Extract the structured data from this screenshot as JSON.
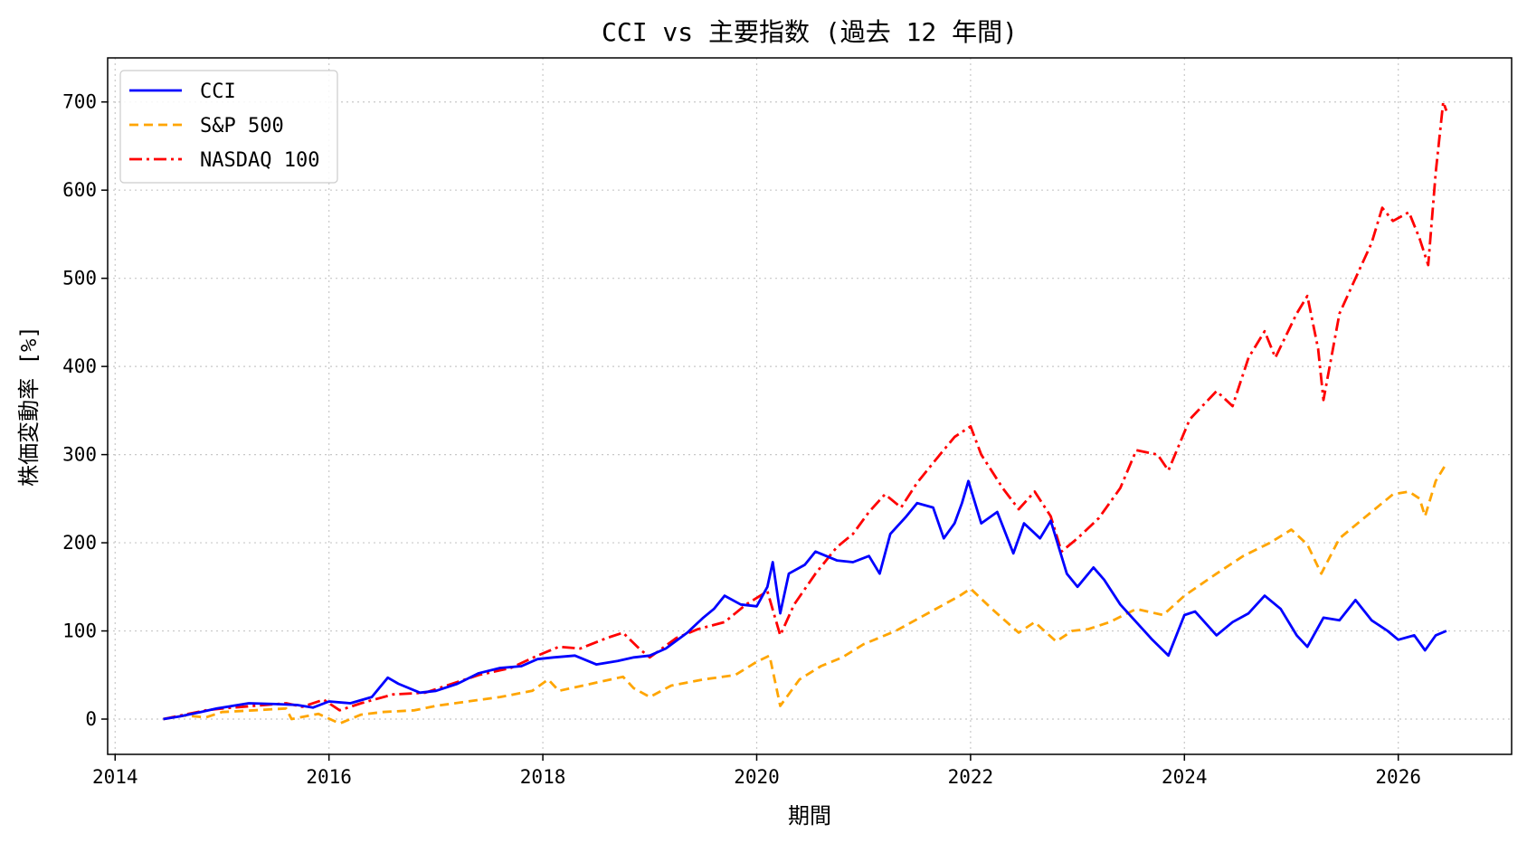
{
  "chart_data": {
    "type": "line",
    "title": "CCI vs 主要指数 (過去 12 年間)",
    "xlabel": "期間",
    "ylabel": "株価変動率 [%]",
    "xlim": [
      2013.93,
      2027.06
    ],
    "ylim": [
      -40,
      750
    ],
    "xticks": [
      2014,
      2016,
      2018,
      2020,
      2022,
      2024,
      2026
    ],
    "yticks": [
      0,
      100,
      200,
      300,
      400,
      500,
      600,
      700
    ],
    "grid": true,
    "legend_position": "top-left",
    "series": [
      {
        "name": "CCI",
        "color": "#0000ff",
        "style": "solid",
        "points": [
          [
            2014.45,
            0
          ],
          [
            2014.6,
            3
          ],
          [
            2014.8,
            8
          ],
          [
            2014.95,
            12
          ],
          [
            2015.1,
            15
          ],
          [
            2015.25,
            18
          ],
          [
            2015.5,
            17
          ],
          [
            2015.7,
            16
          ],
          [
            2015.85,
            13
          ],
          [
            2016.0,
            20
          ],
          [
            2016.2,
            18
          ],
          [
            2016.4,
            25
          ],
          [
            2016.55,
            47
          ],
          [
            2016.65,
            40
          ],
          [
            2016.85,
            30
          ],
          [
            2017.0,
            32
          ],
          [
            2017.2,
            40
          ],
          [
            2017.4,
            52
          ],
          [
            2017.6,
            58
          ],
          [
            2017.8,
            60
          ],
          [
            2017.95,
            68
          ],
          [
            2018.1,
            70
          ],
          [
            2018.3,
            72
          ],
          [
            2018.5,
            62
          ],
          [
            2018.7,
            66
          ],
          [
            2018.85,
            70
          ],
          [
            2019.0,
            72
          ],
          [
            2019.15,
            80
          ],
          [
            2019.35,
            98
          ],
          [
            2019.5,
            115
          ],
          [
            2019.6,
            125
          ],
          [
            2019.7,
            140
          ],
          [
            2019.85,
            130
          ],
          [
            2020.0,
            128
          ],
          [
            2020.1,
            150
          ],
          [
            2020.15,
            178
          ],
          [
            2020.22,
            120
          ],
          [
            2020.3,
            165
          ],
          [
            2020.45,
            175
          ],
          [
            2020.55,
            190
          ],
          [
            2020.75,
            180
          ],
          [
            2020.9,
            178
          ],
          [
            2021.05,
            185
          ],
          [
            2021.15,
            165
          ],
          [
            2021.25,
            210
          ],
          [
            2021.4,
            230
          ],
          [
            2021.5,
            245
          ],
          [
            2021.65,
            240
          ],
          [
            2021.75,
            205
          ],
          [
            2021.85,
            222
          ],
          [
            2021.92,
            245
          ],
          [
            2021.98,
            270
          ],
          [
            2022.1,
            222
          ],
          [
            2022.25,
            235
          ],
          [
            2022.4,
            188
          ],
          [
            2022.5,
            222
          ],
          [
            2022.65,
            205
          ],
          [
            2022.75,
            225
          ],
          [
            2022.9,
            165
          ],
          [
            2023.0,
            150
          ],
          [
            2023.15,
            172
          ],
          [
            2023.25,
            158
          ],
          [
            2023.4,
            130
          ],
          [
            2023.55,
            110
          ],
          [
            2023.7,
            90
          ],
          [
            2023.85,
            72
          ],
          [
            2024.0,
            118
          ],
          [
            2024.1,
            122
          ],
          [
            2024.3,
            95
          ],
          [
            2024.45,
            110
          ],
          [
            2024.6,
            120
          ],
          [
            2024.75,
            140
          ],
          [
            2024.9,
            125
          ],
          [
            2025.05,
            95
          ],
          [
            2025.15,
            82
          ],
          [
            2025.3,
            115
          ],
          [
            2025.45,
            112
          ],
          [
            2025.6,
            135
          ],
          [
            2025.75,
            112
          ],
          [
            2025.9,
            100
          ],
          [
            2026.0,
            90
          ],
          [
            2026.15,
            95
          ],
          [
            2026.25,
            78
          ],
          [
            2026.35,
            95
          ],
          [
            2026.45,
            100
          ]
        ]
      },
      {
        "name": "S&P 500",
        "color": "#ffa500",
        "style": "dashed",
        "points": [
          [
            2014.45,
            0
          ],
          [
            2014.65,
            4
          ],
          [
            2014.85,
            2
          ],
          [
            2015.0,
            8
          ],
          [
            2015.3,
            10
          ],
          [
            2015.6,
            12
          ],
          [
            2015.65,
            0
          ],
          [
            2015.9,
            6
          ],
          [
            2016.1,
            -5
          ],
          [
            2016.3,
            5
          ],
          [
            2016.5,
            8
          ],
          [
            2016.8,
            10
          ],
          [
            2017.0,
            15
          ],
          [
            2017.3,
            20
          ],
          [
            2017.6,
            25
          ],
          [
            2017.9,
            32
          ],
          [
            2018.05,
            45
          ],
          [
            2018.15,
            32
          ],
          [
            2018.45,
            40
          ],
          [
            2018.75,
            48
          ],
          [
            2018.85,
            35
          ],
          [
            2019.0,
            25
          ],
          [
            2019.2,
            38
          ],
          [
            2019.5,
            45
          ],
          [
            2019.8,
            50
          ],
          [
            2020.0,
            65
          ],
          [
            2020.12,
            72
          ],
          [
            2020.22,
            15
          ],
          [
            2020.4,
            45
          ],
          [
            2020.6,
            60
          ],
          [
            2020.8,
            70
          ],
          [
            2021.0,
            85
          ],
          [
            2021.3,
            100
          ],
          [
            2021.6,
            120
          ],
          [
            2021.9,
            140
          ],
          [
            2022.0,
            148
          ],
          [
            2022.2,
            125
          ],
          [
            2022.45,
            98
          ],
          [
            2022.6,
            110
          ],
          [
            2022.8,
            88
          ],
          [
            2022.95,
            100
          ],
          [
            2023.1,
            102
          ],
          [
            2023.3,
            110
          ],
          [
            2023.55,
            125
          ],
          [
            2023.8,
            118
          ],
          [
            2024.0,
            140
          ],
          [
            2024.3,
            165
          ],
          [
            2024.55,
            185
          ],
          [
            2024.8,
            200
          ],
          [
            2025.0,
            215
          ],
          [
            2025.15,
            198
          ],
          [
            2025.28,
            165
          ],
          [
            2025.45,
            205
          ],
          [
            2025.7,
            230
          ],
          [
            2025.95,
            255
          ],
          [
            2026.1,
            258
          ],
          [
            2026.2,
            250
          ],
          [
            2026.25,
            230
          ],
          [
            2026.35,
            270
          ],
          [
            2026.45,
            290
          ]
        ]
      },
      {
        "name": "NASDAQ 100",
        "color": "#ff0000",
        "style": "dashdot",
        "points": [
          [
            2014.45,
            0
          ],
          [
            2014.65,
            5
          ],
          [
            2014.85,
            10
          ],
          [
            2015.0,
            12
          ],
          [
            2015.3,
            15
          ],
          [
            2015.6,
            18
          ],
          [
            2015.75,
            14
          ],
          [
            2015.95,
            22
          ],
          [
            2016.1,
            10
          ],
          [
            2016.3,
            18
          ],
          [
            2016.6,
            28
          ],
          [
            2016.9,
            30
          ],
          [
            2017.1,
            38
          ],
          [
            2017.4,
            50
          ],
          [
            2017.7,
            58
          ],
          [
            2017.95,
            72
          ],
          [
            2018.15,
            82
          ],
          [
            2018.35,
            80
          ],
          [
            2018.6,
            92
          ],
          [
            2018.75,
            98
          ],
          [
            2018.9,
            80
          ],
          [
            2019.0,
            70
          ],
          [
            2019.25,
            92
          ],
          [
            2019.45,
            102
          ],
          [
            2019.7,
            110
          ],
          [
            2019.9,
            130
          ],
          [
            2020.1,
            145
          ],
          [
            2020.22,
            95
          ],
          [
            2020.35,
            130
          ],
          [
            2020.55,
            165
          ],
          [
            2020.75,
            195
          ],
          [
            2020.9,
            210
          ],
          [
            2021.05,
            235
          ],
          [
            2021.2,
            255
          ],
          [
            2021.35,
            240
          ],
          [
            2021.5,
            268
          ],
          [
            2021.7,
            298
          ],
          [
            2021.85,
            320
          ],
          [
            2022.0,
            332
          ],
          [
            2022.1,
            300
          ],
          [
            2022.3,
            262
          ],
          [
            2022.45,
            238
          ],
          [
            2022.6,
            258
          ],
          [
            2022.75,
            230
          ],
          [
            2022.85,
            190
          ],
          [
            2023.0,
            205
          ],
          [
            2023.2,
            228
          ],
          [
            2023.4,
            262
          ],
          [
            2023.55,
            305
          ],
          [
            2023.75,
            300
          ],
          [
            2023.85,
            282
          ],
          [
            2024.05,
            340
          ],
          [
            2024.3,
            372
          ],
          [
            2024.45,
            355
          ],
          [
            2024.6,
            410
          ],
          [
            2024.75,
            440
          ],
          [
            2024.85,
            410
          ],
          [
            2025.05,
            460
          ],
          [
            2025.15,
            480
          ],
          [
            2025.25,
            420
          ],
          [
            2025.3,
            362
          ],
          [
            2025.45,
            460
          ],
          [
            2025.6,
            500
          ],
          [
            2025.75,
            540
          ],
          [
            2025.85,
            580
          ],
          [
            2025.95,
            565
          ],
          [
            2026.1,
            575
          ],
          [
            2026.2,
            545
          ],
          [
            2026.28,
            515
          ],
          [
            2026.35,
            620
          ],
          [
            2026.42,
            700
          ],
          [
            2026.45,
            690
          ]
        ]
      }
    ]
  }
}
